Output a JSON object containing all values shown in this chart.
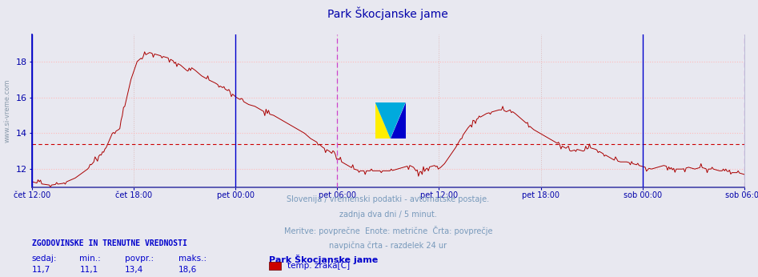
{
  "title": "Park Škocjanske jame",
  "title_color": "#0000aa",
  "bg_color": "#e8e8f0",
  "plot_bg_color": "#e8e8f0",
  "line_color": "#aa0000",
  "avg_line_color": "#cc0000",
  "avg_value": 13.4,
  "ymin": 11.0,
  "ymax": 19.5,
  "yticks": [
    12,
    14,
    16,
    18
  ],
  "xlabel_color": "#0000aa",
  "ylabel_color": "#0000aa",
  "grid_color": "#ffbbbb",
  "vgrid_color": "#ddbbbb",
  "vline_color_blue": "#0000cc",
  "vline_color_magenta": "#cc44cc",
  "footer_line1": "Slovenija / vremenski podatki - avtomatske postaje.",
  "footer_line2": "zadnja dva dni / 5 minut.",
  "footer_line3": "Meritve: povprečne  Enote: metrične  Črta: povprečje",
  "footer_line4": "navpična črta - razdelek 24 ur",
  "footer_color": "#7799bb",
  "bottom_label1": "ZGODOVINSKE IN TRENUTNE VREDNOSTI",
  "bottom_col_headers": [
    "sedaj:",
    "min.:",
    "povpr.:",
    "maks.:"
  ],
  "bottom_col_values": [
    "11,7",
    "11,1",
    "13,4",
    "18,6"
  ],
  "bottom_station": "Park Škocjanske jame",
  "bottom_measure": "temp. zraka[C]",
  "bottom_color": "#0000cc",
  "sidebar_text": "www.si-vreme.com",
  "sidebar_color": "#8899aa",
  "tick_labels": [
    "čet 12:00",
    "čet 18:00",
    "pet 00:00",
    "pet 06:00",
    "pet 12:00",
    "pet 18:00",
    "sob 00:00",
    "sob 06:00"
  ],
  "num_points": 576,
  "keypoints": [
    [
      0,
      11.3
    ],
    [
      5,
      11.2
    ],
    [
      15,
      11.1
    ],
    [
      25,
      11.2
    ],
    [
      35,
      11.5
    ],
    [
      45,
      12.0
    ],
    [
      55,
      12.8
    ],
    [
      60,
      13.2
    ],
    [
      65,
      14.0
    ],
    [
      70,
      14.2
    ],
    [
      75,
      15.5
    ],
    [
      80,
      17.0
    ],
    [
      85,
      18.0
    ],
    [
      90,
      18.3
    ],
    [
      95,
      18.5
    ],
    [
      100,
      18.4
    ],
    [
      105,
      18.3
    ],
    [
      110,
      18.2
    ],
    [
      115,
      18.0
    ],
    [
      120,
      17.8
    ],
    [
      125,
      17.5
    ],
    [
      128,
      17.7
    ],
    [
      132,
      17.5
    ],
    [
      137,
      17.2
    ],
    [
      142,
      17.0
    ],
    [
      148,
      16.8
    ],
    [
      155,
      16.5
    ],
    [
      160,
      16.3
    ],
    [
      165,
      16.0
    ],
    [
      170,
      15.8
    ],
    [
      175,
      15.6
    ],
    [
      180,
      15.5
    ],
    [
      185,
      15.3
    ],
    [
      190,
      15.1
    ],
    [
      195,
      15.0
    ],
    [
      200,
      14.8
    ],
    [
      205,
      14.6
    ],
    [
      210,
      14.4
    ],
    [
      215,
      14.2
    ],
    [
      220,
      14.0
    ],
    [
      225,
      13.7
    ],
    [
      230,
      13.5
    ],
    [
      235,
      13.2
    ],
    [
      240,
      13.0
    ],
    [
      245,
      12.7
    ],
    [
      250,
      12.4
    ],
    [
      255,
      12.2
    ],
    [
      260,
      12.0
    ],
    [
      265,
      11.9
    ],
    [
      270,
      11.9
    ],
    [
      275,
      11.9
    ],
    [
      280,
      11.9
    ],
    [
      285,
      11.9
    ],
    [
      290,
      11.9
    ],
    [
      295,
      12.0
    ],
    [
      300,
      12.1
    ],
    [
      305,
      12.2
    ],
    [
      308,
      12.1
    ],
    [
      310,
      11.9
    ],
    [
      312,
      11.8
    ],
    [
      315,
      11.9
    ],
    [
      318,
      12.0
    ],
    [
      320,
      12.1
    ],
    [
      325,
      12.2
    ],
    [
      328,
      12.0
    ],
    [
      330,
      12.1
    ],
    [
      333,
      12.3
    ],
    [
      338,
      12.8
    ],
    [
      342,
      13.2
    ],
    [
      347,
      13.8
    ],
    [
      352,
      14.3
    ],
    [
      357,
      14.7
    ],
    [
      362,
      14.9
    ],
    [
      367,
      15.1
    ],
    [
      372,
      15.2
    ],
    [
      377,
      15.3
    ],
    [
      380,
      15.3
    ],
    [
      383,
      15.2
    ],
    [
      386,
      15.3
    ],
    [
      390,
      15.1
    ],
    [
      395,
      14.8
    ],
    [
      400,
      14.5
    ],
    [
      405,
      14.2
    ],
    [
      410,
      14.0
    ],
    [
      415,
      13.8
    ],
    [
      420,
      13.6
    ],
    [
      425,
      13.4
    ],
    [
      430,
      13.2
    ],
    [
      435,
      13.0
    ],
    [
      440,
      13.1
    ],
    [
      445,
      13.0
    ],
    [
      450,
      13.2
    ],
    [
      455,
      13.1
    ],
    [
      460,
      12.9
    ],
    [
      465,
      12.7
    ],
    [
      470,
      12.5
    ],
    [
      475,
      12.4
    ],
    [
      480,
      12.4
    ],
    [
      485,
      12.3
    ],
    [
      490,
      12.2
    ],
    [
      495,
      12.1
    ],
    [
      500,
      12.0
    ],
    [
      505,
      12.1
    ],
    [
      510,
      12.2
    ],
    [
      515,
      12.1
    ],
    [
      520,
      12.0
    ],
    [
      525,
      12.0
    ],
    [
      530,
      12.1
    ],
    [
      535,
      12.0
    ],
    [
      540,
      12.1
    ],
    [
      545,
      12.0
    ],
    [
      550,
      12.0
    ],
    [
      555,
      11.9
    ],
    [
      560,
      11.9
    ],
    [
      565,
      11.8
    ],
    [
      570,
      11.8
    ],
    [
      575,
      11.7
    ]
  ]
}
